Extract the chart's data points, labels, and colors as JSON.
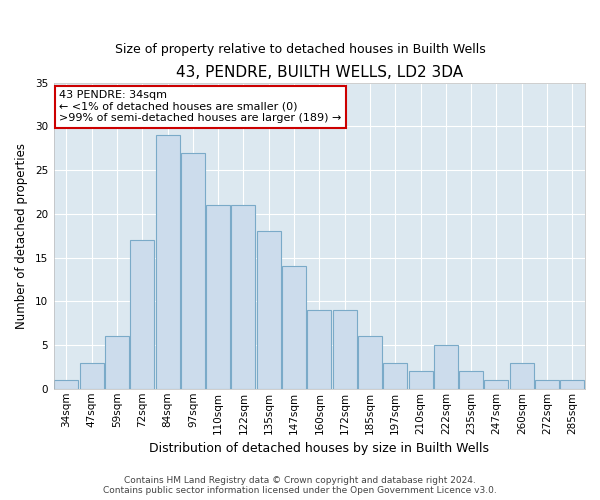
{
  "title": "43, PENDRE, BUILTH WELLS, LD2 3DA",
  "subtitle": "Size of property relative to detached houses in Builth Wells",
  "xlabel": "Distribution of detached houses by size in Builth Wells",
  "ylabel": "Number of detached properties",
  "categories": [
    "34sqm",
    "47sqm",
    "59sqm",
    "72sqm",
    "84sqm",
    "97sqm",
    "110sqm",
    "122sqm",
    "135sqm",
    "147sqm",
    "160sqm",
    "172sqm",
    "185sqm",
    "197sqm",
    "210sqm",
    "222sqm",
    "235sqm",
    "247sqm",
    "260sqm",
    "272sqm",
    "285sqm"
  ],
  "bar_heights": [
    1,
    3,
    6,
    17,
    29,
    27,
    21,
    21,
    18,
    14,
    9,
    9,
    6,
    3,
    2,
    5,
    2,
    1,
    3,
    1,
    1
  ],
  "bar_color": "#ccdcec",
  "bar_edge_color": "#7aaac8",
  "ylim": [
    0,
    35
  ],
  "yticks": [
    0,
    5,
    10,
    15,
    20,
    25,
    30,
    35
  ],
  "bg_color": "#dce8f0",
  "grid_color": "#ffffff",
  "fig_bg_color": "#ffffff",
  "annotation_line1": "43 PENDRE: 34sqm",
  "annotation_line2": "← <1% of detached houses are smaller (0)",
  "annotation_line3": ">99% of semi-detached houses are larger (189) →",
  "annotation_box_edge": "#cc0000",
  "title_fontsize": 11,
  "subtitle_fontsize": 9,
  "ylabel_fontsize": 8.5,
  "xlabel_fontsize": 9,
  "tick_fontsize": 7.5,
  "footer_line1": "Contains HM Land Registry data © Crown copyright and database right 2024.",
  "footer_line2": "Contains public sector information licensed under the Open Government Licence v3.0."
}
